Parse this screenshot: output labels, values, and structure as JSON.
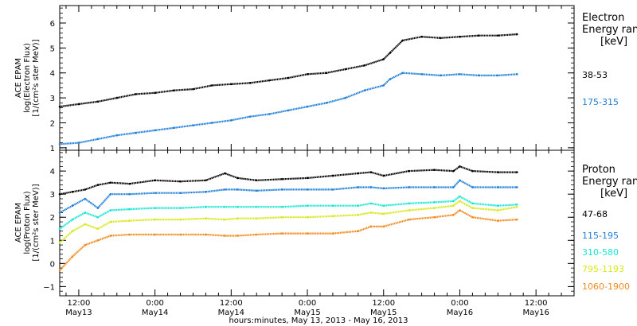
{
  "x_axis": {
    "title": "hours:minutes, May 13, 2013 - May 16, 2013",
    "ticks": [
      {
        "hours": 12,
        "time": "12:00",
        "date": "May13"
      },
      {
        "hours": 24,
        "time": "0:00",
        "date": "May14"
      },
      {
        "hours": 36,
        "time": "12:00",
        "date": "May14"
      },
      {
        "hours": 48,
        "time": "0:00",
        "date": "May15"
      },
      {
        "hours": 60,
        "time": "12:00",
        "date": "May15"
      },
      {
        "hours": 72,
        "time": "0:00",
        "date": "May16"
      },
      {
        "hours": 84,
        "time": "12:00",
        "date": "May16"
      }
    ]
  },
  "panels": [
    {
      "ylabel_lines": [
        "ACE EPAM",
        "log(Electron Flux)",
        "[1/(cm²s ster MeV)]"
      ],
      "legend_title": [
        "Electron",
        "Energy ranges",
        "[keV]"
      ]
    },
    {
      "ylabel_lines": [
        "ACE EPAM",
        "log(Proton Flux)",
        "[1/(cm²s ster MeV)]"
      ],
      "legend_title": [
        "Proton",
        "Energy ranges",
        "[keV]"
      ]
    }
  ],
  "colors": {
    "black": "#000000",
    "blue": "#1f7fd8",
    "cyan": "#19e6d2",
    "yellow": "#d8e81a",
    "orange": "#f08a1c"
  },
  "chart_data": [
    {
      "type": "line",
      "title": "",
      "xlabel": "hours:minutes, May 13, 2013 - May 16, 2013",
      "ylabel": "ACE EPAM log(Electron Flux) [1/(cm²s ster MeV)]",
      "xlim": [
        9,
        90
      ],
      "ylim": [
        0.9,
        6.7
      ],
      "yticks": [
        1,
        2,
        3,
        4,
        5,
        6
      ],
      "grid": false,
      "legend_placement": "right",
      "x": [
        9,
        12,
        15,
        18,
        21,
        24,
        27,
        30,
        33,
        36,
        39,
        42,
        45,
        48,
        51,
        54,
        57,
        60,
        61,
        63,
        66,
        69,
        72,
        75,
        78,
        81
      ],
      "series": [
        {
          "name": "38-53",
          "color": "#000000",
          "values": [
            2.65,
            2.75,
            2.85,
            3.0,
            3.15,
            3.2,
            3.3,
            3.35,
            3.5,
            3.55,
            3.6,
            3.7,
            3.8,
            3.95,
            4.0,
            4.15,
            4.3,
            4.55,
            4.8,
            5.3,
            5.45,
            5.4,
            5.45,
            5.5,
            5.5,
            5.55
          ]
        },
        {
          "name": "175-315",
          "color": "#1f7fd8",
          "values": [
            1.15,
            1.2,
            1.35,
            1.5,
            1.6,
            1.7,
            1.8,
            1.9,
            2.0,
            2.1,
            2.25,
            2.35,
            2.5,
            2.65,
            2.8,
            3.0,
            3.3,
            3.5,
            3.75,
            4.0,
            3.95,
            3.9,
            3.95,
            3.9,
            3.9,
            3.95
          ]
        }
      ]
    },
    {
      "type": "line",
      "title": "",
      "xlabel": "hours:minutes, May 13, 2013 - May 16, 2013",
      "ylabel": "ACE EPAM log(Proton Flux) [1/(cm²s ster MeV)]",
      "xlim": [
        9,
        90
      ],
      "ylim": [
        -1.4,
        4.9
      ],
      "yticks": [
        -1,
        0,
        1,
        2,
        3,
        4
      ],
      "grid": false,
      "legend_placement": "right",
      "x": [
        9,
        11,
        13,
        15,
        17,
        20,
        24,
        28,
        32,
        35,
        37,
        40,
        44,
        48,
        52,
        56,
        58,
        60,
        64,
        68,
        71,
        72,
        74,
        78,
        81
      ],
      "series": [
        {
          "name": "47-68",
          "color": "#000000",
          "values": [
            3.0,
            3.1,
            3.2,
            3.4,
            3.5,
            3.45,
            3.6,
            3.55,
            3.6,
            3.9,
            3.7,
            3.6,
            3.65,
            3.7,
            3.8,
            3.9,
            3.95,
            3.8,
            4.0,
            4.05,
            4.0,
            4.2,
            4.0,
            3.95,
            3.95
          ]
        },
        {
          "name": "115-195",
          "color": "#1f7fd8",
          "values": [
            2.2,
            2.5,
            2.8,
            2.4,
            3.0,
            3.0,
            3.05,
            3.05,
            3.1,
            3.2,
            3.2,
            3.15,
            3.2,
            3.2,
            3.2,
            3.3,
            3.3,
            3.25,
            3.3,
            3.3,
            3.3,
            3.6,
            3.3,
            3.3,
            3.3
          ]
        },
        {
          "name": "310-580",
          "color": "#19e6d2",
          "values": [
            1.5,
            1.9,
            2.2,
            2.0,
            2.3,
            2.35,
            2.4,
            2.4,
            2.45,
            2.45,
            2.45,
            2.45,
            2.45,
            2.5,
            2.5,
            2.5,
            2.6,
            2.5,
            2.6,
            2.65,
            2.7,
            2.9,
            2.6,
            2.5,
            2.55
          ]
        },
        {
          "name": "795-1193",
          "color": "#d8e81a",
          "values": [
            0.9,
            1.4,
            1.7,
            1.5,
            1.8,
            1.85,
            1.9,
            1.9,
            1.95,
            1.9,
            1.95,
            1.95,
            2.0,
            2.0,
            2.05,
            2.1,
            2.2,
            2.15,
            2.3,
            2.4,
            2.5,
            2.7,
            2.4,
            2.3,
            2.45
          ]
        },
        {
          "name": "1060-1900",
          "color": "#f08a1c",
          "values": [
            -0.3,
            0.3,
            0.8,
            1.0,
            1.2,
            1.25,
            1.25,
            1.25,
            1.25,
            1.2,
            1.2,
            1.25,
            1.3,
            1.3,
            1.3,
            1.4,
            1.6,
            1.6,
            1.9,
            2.0,
            2.1,
            2.3,
            2.0,
            1.85,
            1.9
          ]
        }
      ]
    }
  ]
}
